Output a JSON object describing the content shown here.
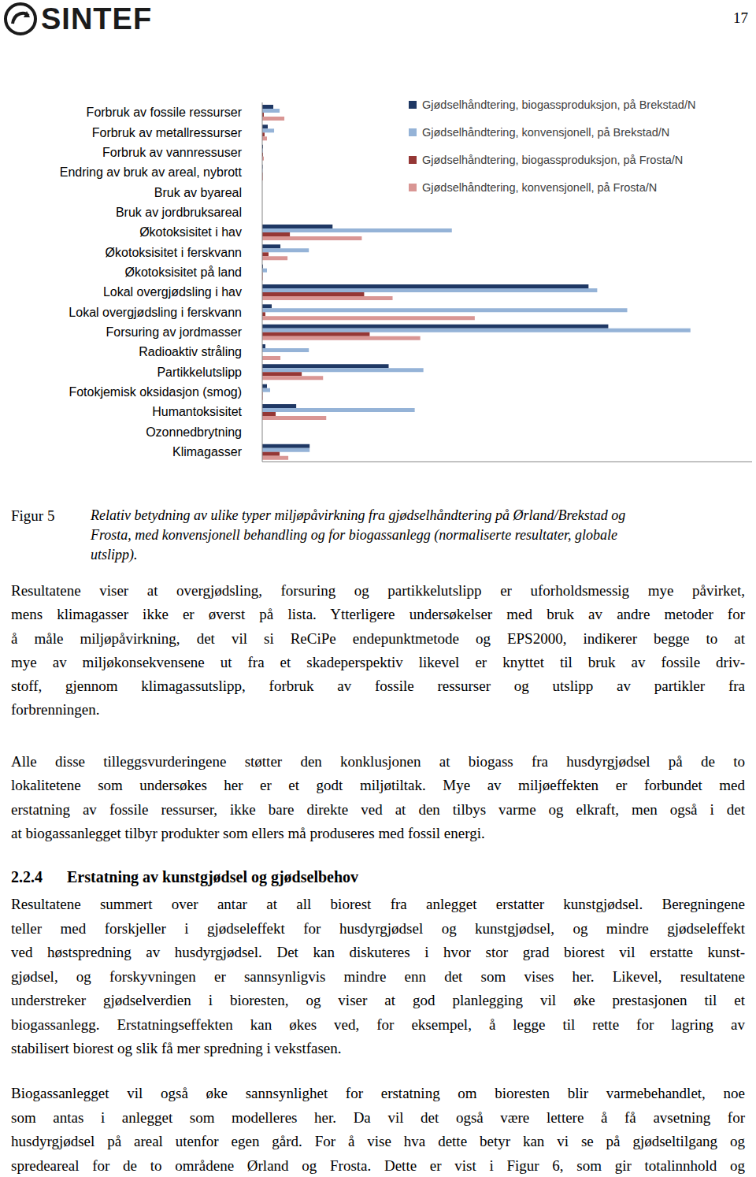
{
  "header": {
    "logo": "SINTEF",
    "page_number": "17"
  },
  "chart_data": {
    "type": "bar",
    "orientation": "horizontal",
    "tick_labels": "y",
    "grid": false,
    "legend": "top-right",
    "categories": [
      "Forbruk av fossile ressurser",
      "Forbruk av metallressurser",
      "Forbruk av vannressuser",
      "Endring av bruk av areal, nybrott",
      "Bruk av byareal",
      "Bruk av jordbruksareal",
      "Økotoksisitet i hav",
      "Økotoksisitet i ferskvann",
      "Økotoksisitet på land",
      "Lokal overgjødsling i hav",
      "Lokal overgjødsling i ferskvann",
      "Forsuring av jordmasser",
      "Radioaktiv stråling",
      "Partikkelutslipp",
      "Fotokjemisk oksidasjon (smog)",
      "Humantoksisitet",
      "Ozonnedbrytning",
      "Klimagasser"
    ],
    "xlim": [
      0,
      620
    ],
    "series": [
      {
        "name": "Gjødselhåndtering, biogassproduksjon, på Brekstad/N",
        "color": "#1f3864",
        "values": [
          14,
          7,
          1,
          0.5,
          0,
          0,
          89,
          23,
          1,
          413,
          12,
          438,
          4,
          160,
          6,
          43,
          0,
          60
        ]
      },
      {
        "name": "Gjødselhåndtering, konvensjonell, på Brekstad/N",
        "color": "#95b3d7",
        "values": [
          22,
          15,
          1,
          0.5,
          0,
          0,
          240,
          59,
          6,
          424,
          462,
          542,
          59,
          204,
          10,
          193,
          0,
          60
        ]
      },
      {
        "name": "Gjødselhåndtering, biogassproduksjon, på Frosta/N",
        "color": "#953735",
        "values": [
          2,
          3,
          1,
          0.5,
          0,
          0,
          35,
          8,
          0.5,
          129,
          4,
          136,
          0,
          50,
          0.5,
          17,
          0,
          22
        ]
      },
      {
        "name": "Gjødselhåndtering, konvensjonell, på Frosta/N",
        "color": "#d99694",
        "values": [
          28,
          6,
          2,
          1,
          0,
          0,
          126,
          32,
          1,
          165,
          269,
          200,
          23,
          77,
          1,
          81,
          0,
          33
        ]
      }
    ]
  },
  "caption": {
    "label": "Figur 5",
    "lines": [
      "Relativ betydning av ulike typer miljøpåvirkning fra gjødselhåndtering på Ørland/Brekstad og",
      "Frosta, med konvensjonell behandling og for biogassanlegg (normaliserte resultater, globale",
      "utslipp)."
    ]
  },
  "body_before_heading": [
    [
      "Resultatene viser at overgjødsling, forsuring og partikkelutslipp er uforholdsmessig mye påvirket,",
      "mens klimagasser ikke er øverst på lista. Ytterligere undersøkelser med bruk av andre metoder for",
      "å måle miljøpåvirkning, det vil si ReCiPe endepunktmetode og EPS2000, indikerer begge to at",
      "mye av miljøkonsekvensene ut fra et skadeperspektiv likevel er knyttet til bruk av fossile driv-",
      "stoff, gjennom klimagassutslipp, forbruk av fossile ressurser og utslipp av partikler fra",
      "forbrenningen."
    ],
    [
      "Alle disse tilleggsvurderingene støtter den konklusjonen at biogass fra husdyrgjødsel på de to",
      "lokalitetene som undersøkes her er et godt miljøtiltak. Mye av miljøeffekten er forbundet med",
      "erstatning av fossile ressurser, ikke bare direkte ved at den tilbys varme og elkraft, men også i det",
      "at biogassanlegget tilbyr produkter som ellers må produseres med fossil energi."
    ]
  ],
  "heading": {
    "number": "2.2.4",
    "title": "Erstatning av kunstgjødsel og gjødselbehov"
  },
  "body_after_heading": [
    [
      "Resultatene summert over antar at all biorest fra anlegget erstatter kunstgjødsel. Beregningene",
      "teller med forskjeller i gjødseleffekt for husdyrgjødsel og kunstgjødsel, og mindre gjødseleffekt",
      "ved høstspredning av husdyrgjødsel. Det kan diskuteres i hvor stor grad biorest vil erstatte kunst-",
      "gjødsel, og forskyvningen er sannsynligvis mindre enn det som vises her. Likevel, resultatene",
      "understreker gjødselverdien i bioresten, og viser at god planlegging vil øke prestasjonen til et",
      "biogassanlegg. Erstatningseffekten kan økes ved, for eksempel, å legge til rette for lagring av",
      "stabilisert biorest og slik få mer spredning i vekstfasen."
    ],
    [
      "Biogassanlegget vil også øke sannsynlighet for erstatning om bioresten blir varmebehandlet, noe",
      "som antas i anlegget som modelleres her. Da vil det også være lettere å få avsetning for",
      "husdyrgjødsel på areal utenfor egen gård. For å vise hva dette betyr kan vi se på gjødseltilgang og",
      "spredeareal for de to områdene Ørland og Frosta. Dette er vist i Figur 6, som gir totalinnhold og"
    ]
  ]
}
